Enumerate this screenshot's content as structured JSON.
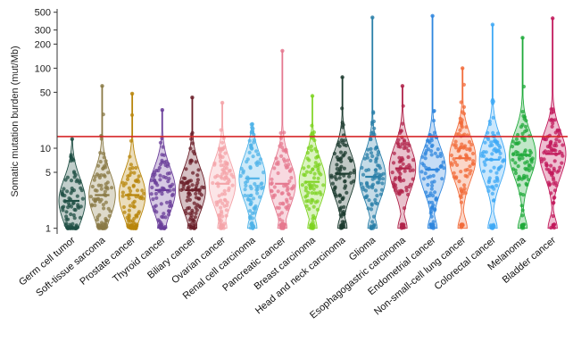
{
  "chart_data": {
    "type": "violin-strip",
    "ylabel": "Somatic mutation burden (mut/Mb)",
    "yscale": "log",
    "ylim": [
      0.85,
      550
    ],
    "yticks": [
      1,
      5,
      10,
      50,
      100,
      200,
      300,
      500
    ],
    "ytick_labels": [
      "1",
      "5",
      "10",
      "50",
      "100",
      "200",
      "300",
      "500"
    ],
    "threshold": 14,
    "threshold_color": "#d62728",
    "grid": false,
    "categories": [
      "Germ cell tumor",
      "Soft-tissue sarcoma",
      "Prostate cancer",
      "Thyroid cancer",
      "Biliary cancer",
      "Ovarian cancer",
      "Renal cell carcinoma",
      "Pancreatic cancer",
      "Breast carcinoma",
      "Head and neck carcinoma",
      "Glioma",
      "Esophagogastric carcinoma",
      "Endometrial cancer",
      "Non-small-cell lung cancer",
      "Colorectal cancer",
      "Melanoma",
      "Bladder cancer"
    ],
    "colors": [
      "#1f4f44",
      "#8a7a45",
      "#b8860b",
      "#6a3d9a",
      "#6b1f2a",
      "#f4a3a8",
      "#4fb3e8",
      "#e5788f",
      "#7ed321",
      "#1c3b2f",
      "#2a7fa8",
      "#b0234a",
      "#2e86de",
      "#f26b3a",
      "#3fa9f5",
      "#1faa3a",
      "#c2185b"
    ],
    "median": [
      2.2,
      2.6,
      2.6,
      3.0,
      3.0,
      3.6,
      4.2,
      3.6,
      3.8,
      4.8,
      4.4,
      5.6,
      5.4,
      7.5,
      7.2,
      8.2,
      8.5
    ],
    "max": [
      13,
      60,
      48,
      30,
      43,
      37,
      20,
      165,
      45,
      77,
      430,
      60,
      450,
      100,
      350,
      240,
      420
    ],
    "min": [
      1,
      1,
      1,
      1,
      1,
      1,
      1,
      1,
      1,
      1,
      1,
      1,
      1,
      1,
      1,
      1,
      1
    ]
  }
}
